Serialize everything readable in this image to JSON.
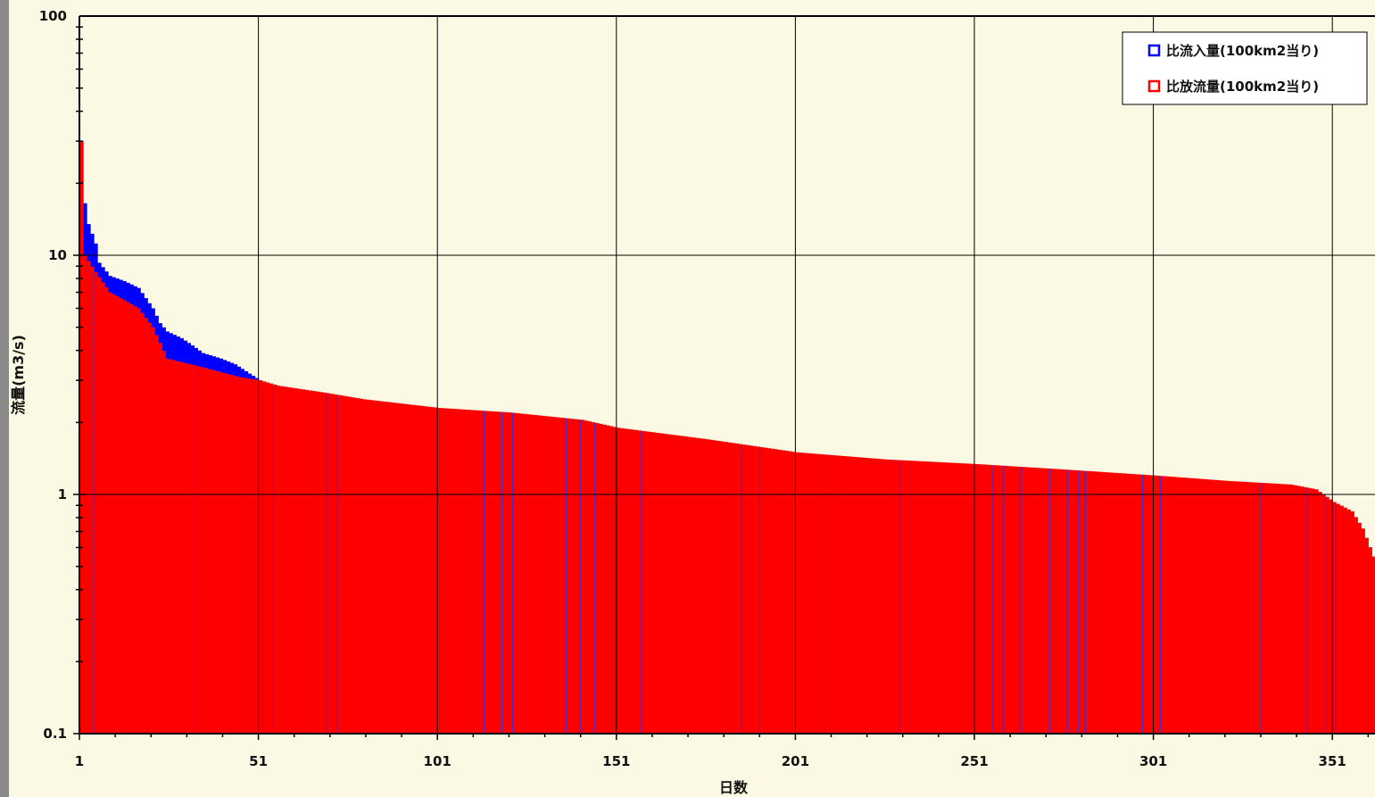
{
  "chart_data": {
    "type": "bar",
    "xlabel": "日数",
    "ylabel": "流量(m3/s)",
    "yscale": "log",
    "ylim": [
      0.1,
      100
    ],
    "xlim": [
      1,
      362
    ],
    "grid": true,
    "legend_position": "top-right",
    "y_ticks": [
      "100",
      "10",
      "1",
      "0.1"
    ],
    "x_ticks": [
      "1",
      "51",
      "101",
      "151",
      "201",
      "251",
      "301",
      "351"
    ],
    "series": [
      {
        "name": "比流入量(100km2当り)",
        "color": "#0000ff",
        "profile": [
          [
            1,
            30
          ],
          [
            2,
            16.5
          ],
          [
            3,
            13.5
          ],
          [
            5,
            11.2
          ],
          [
            6,
            9.3
          ],
          [
            9,
            8.2
          ],
          [
            13,
            7.8
          ],
          [
            17,
            7.3
          ],
          [
            21,
            6.0
          ],
          [
            23,
            5.2
          ],
          [
            25,
            4.8
          ],
          [
            29,
            4.5
          ],
          [
            32,
            4.2
          ],
          [
            35,
            3.9
          ],
          [
            40,
            3.7
          ],
          [
            44,
            3.5
          ],
          [
            48,
            3.2
          ],
          [
            51,
            3.0
          ]
        ]
      },
      {
        "name": "比放流量(100km2当り)",
        "color": "#ff0000",
        "profile": [
          [
            1,
            30
          ],
          [
            2,
            10.0
          ],
          [
            5,
            8.5
          ],
          [
            9,
            7.0
          ],
          [
            13,
            6.5
          ],
          [
            17,
            6.0
          ],
          [
            21,
            5.0
          ],
          [
            23,
            4.3
          ],
          [
            25,
            3.7
          ],
          [
            35,
            3.4
          ],
          [
            45,
            3.1
          ],
          [
            51,
            3.0
          ],
          [
            56,
            2.85
          ],
          [
            70,
            2.65
          ],
          [
            80,
            2.5
          ],
          [
            101,
            2.3
          ],
          [
            121,
            2.2
          ],
          [
            141,
            2.05
          ],
          [
            151,
            1.9
          ],
          [
            176,
            1.7
          ],
          [
            201,
            1.5
          ],
          [
            226,
            1.4
          ],
          [
            251,
            1.34
          ],
          [
            276,
            1.27
          ],
          [
            301,
            1.2
          ],
          [
            321,
            1.14
          ],
          [
            339,
            1.1
          ],
          [
            346,
            1.05
          ],
          [
            351,
            0.93
          ],
          [
            356,
            0.85
          ],
          [
            359,
            0.72
          ],
          [
            362,
            0.55
          ]
        ]
      }
    ],
    "gaps": [
      5,
      34,
      47,
      52,
      55,
      70,
      73,
      114,
      119,
      122,
      137,
      141,
      145,
      158,
      186,
      191,
      209,
      212,
      230,
      256,
      259,
      264,
      272,
      277,
      280,
      282,
      298,
      303,
      331,
      344,
      349,
      352
    ]
  }
}
